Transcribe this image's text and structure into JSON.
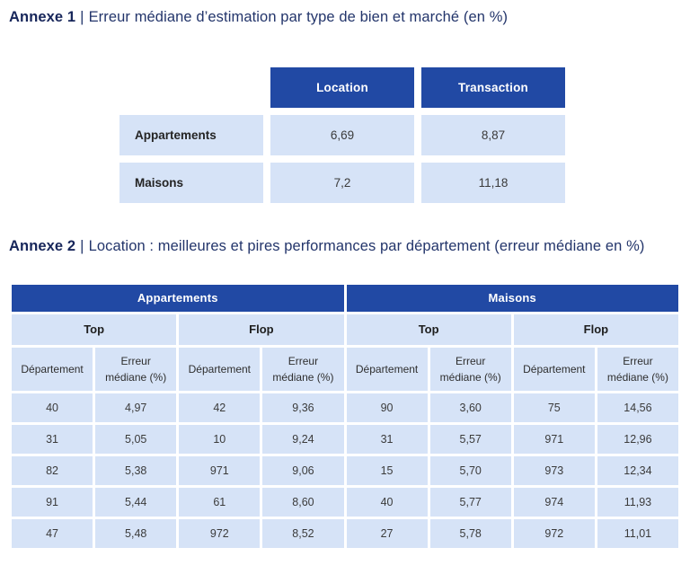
{
  "colors": {
    "header_bg": "#2149A4",
    "cell_bg": "#D6E3F7",
    "title_text": "#23356B",
    "title_bold_text": "#17265A",
    "cell_text": "#3B3B3B"
  },
  "annexe1": {
    "title_label": "Annexe 1",
    "title_separator": "|",
    "title_text": "Erreur médiane d’estimation par type de bien et marché (en %)",
    "table": {
      "columns": [
        "Location",
        "Transaction"
      ],
      "rows": [
        {
          "label": "Appartements",
          "values": [
            "6,69",
            "8,87"
          ]
        },
        {
          "label": "Maisons",
          "values": [
            "7,2",
            "11,18"
          ]
        }
      ]
    }
  },
  "annexe2": {
    "title_label": "Annexe 2",
    "title_separator": "|",
    "title_text": "Location : meilleures et pires performances par département (erreur médiane en %)",
    "table": {
      "group_headers": [
        "Appartements",
        "Maisons"
      ],
      "sub_headers": [
        "Top",
        "Flop",
        "Top",
        "Flop"
      ],
      "col_headers": [
        "Département",
        "Erreur médiane (%)",
        "Département",
        "Erreur médiane (%)",
        "Département",
        "Erreur médiane (%)",
        "Département",
        "Erreur médiane (%)"
      ],
      "rows": [
        [
          "40",
          "4,97",
          "42",
          "9,36",
          "90",
          "3,60",
          "75",
          "14,56"
        ],
        [
          "31",
          "5,05",
          "10",
          "9,24",
          "31",
          "5,57",
          "971",
          "12,96"
        ],
        [
          "82",
          "5,38",
          "971",
          "9,06",
          "15",
          "5,70",
          "973",
          "12,34"
        ],
        [
          "91",
          "5,44",
          "61",
          "8,60",
          "40",
          "5,77",
          "974",
          "11,93"
        ],
        [
          "47",
          "5,48",
          "972",
          "8,52",
          "27",
          "5,78",
          "972",
          "11,01"
        ]
      ]
    }
  }
}
